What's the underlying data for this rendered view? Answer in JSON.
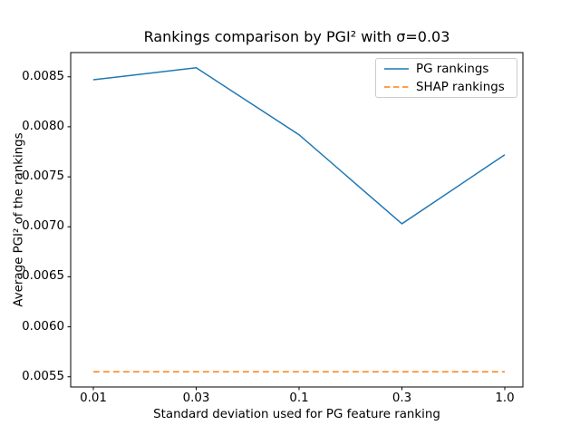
{
  "chart_data": {
    "type": "line",
    "title": "Rankings comparison by PGI² with σ=0.03",
    "xlabel": "Standard deviation used for PG feature ranking",
    "ylabel": "Average PGI² of the rankings",
    "categories": [
      "0.01",
      "0.03",
      "0.1",
      "0.3",
      "1.0"
    ],
    "series": [
      {
        "name": "PG rankings",
        "color": "#1f77b4",
        "style": "solid",
        "values": [
          0.00847,
          0.00859,
          0.00792,
          0.00703,
          0.00772
        ]
      },
      {
        "name": "SHAP rankings",
        "color": "#ff7f0e",
        "style": "dashed",
        "values": [
          0.00555,
          0.00555,
          0.00555,
          0.00555,
          0.00555
        ]
      }
    ],
    "ytick_values": [
      0.0055,
      0.006,
      0.0065,
      0.007,
      0.0075,
      0.008,
      0.0085
    ],
    "ytick_labels": [
      "0.0055",
      "0.0060",
      "0.0065",
      "0.0070",
      "0.0075",
      "0.0080",
      "0.0085"
    ],
    "ylim": [
      0.005398,
      0.008742
    ],
    "grid": false,
    "legend": {
      "position": "upper right"
    },
    "axis_color": "#000000"
  }
}
